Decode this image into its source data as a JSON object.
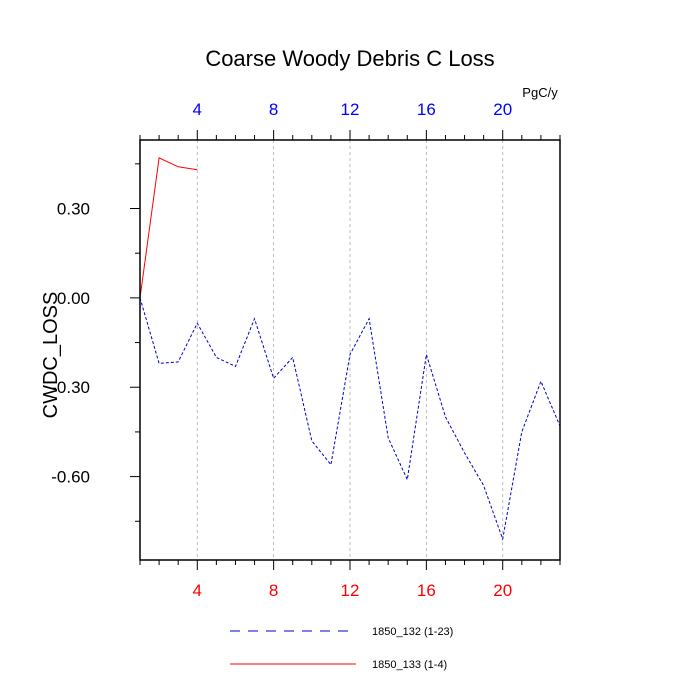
{
  "chart_data": {
    "type": "line",
    "title": "Coarse Woody Debris C Loss",
    "ylabel": "CWDC_LOSS",
    "units_label": "PgC/y",
    "xlim": [
      1,
      23
    ],
    "ylim": [
      -0.88,
      0.53
    ],
    "xticks_major": [
      4,
      8,
      12,
      16,
      20
    ],
    "xticks_minor": [
      1,
      2,
      3,
      4,
      5,
      6,
      7,
      8,
      9,
      10,
      11,
      12,
      13,
      14,
      15,
      16,
      17,
      18,
      19,
      20,
      21,
      22,
      23
    ],
    "yticks_major": [
      0.3,
      0.0,
      -0.3,
      -0.6
    ],
    "ytick_labels": [
      "0.30",
      "0.00",
      "-0.30",
      "-0.60"
    ],
    "yticks_minor": [
      0.45,
      0.15,
      -0.15,
      -0.45,
      -0.75
    ],
    "bottom_axis_color": "#ff0000",
    "top_axis_color": "#0000ff",
    "gridlines": "vertical dashed at major x ticks",
    "series": [
      {
        "name": "1850_132 (1-23)",
        "color": "#0000cc",
        "dash": "dashed",
        "x": [
          1,
          2,
          3,
          4,
          5,
          6,
          7,
          8,
          9,
          10,
          11,
          12,
          13,
          14,
          15,
          16,
          17,
          18,
          19,
          20,
          21,
          22,
          23
        ],
        "y": [
          0.0,
          -0.22,
          -0.215,
          -0.085,
          -0.2,
          -0.23,
          -0.07,
          -0.27,
          -0.2,
          -0.48,
          -0.56,
          -0.19,
          -0.07,
          -0.47,
          -0.61,
          -0.19,
          -0.4,
          -0.52,
          -0.63,
          -0.81,
          -0.45,
          -0.28,
          -0.43
        ]
      },
      {
        "name": "1850_133 (1-4)",
        "color": "#ff0000",
        "dash": "solid",
        "x": [
          1,
          2,
          3,
          4
        ],
        "y": [
          0.0,
          0.47,
          0.44,
          0.43
        ]
      }
    ],
    "legend_position": "bottom"
  }
}
